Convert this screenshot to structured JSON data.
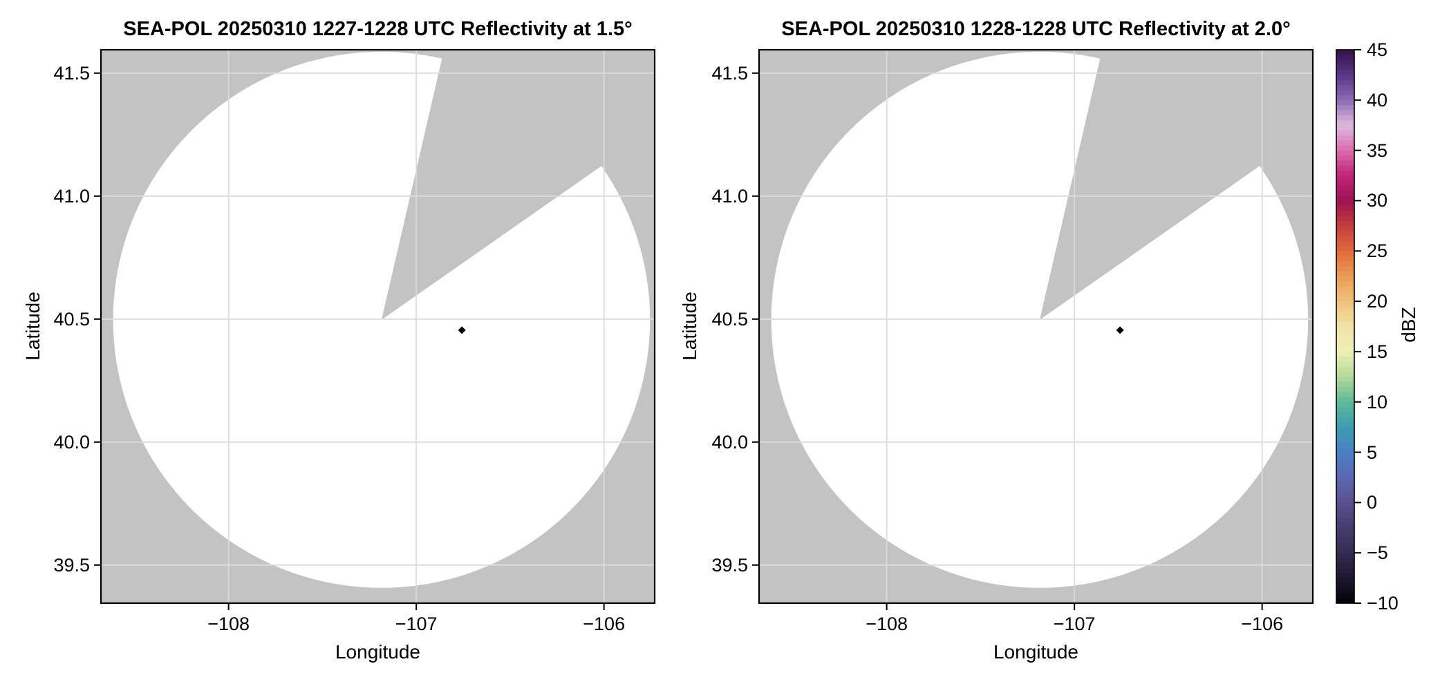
{
  "page": {
    "background": "#ffffff"
  },
  "colors": {
    "panel_background": "#c3c3c3",
    "scan_fill": "#ffffff",
    "gridline": "#dcdcdc",
    "spine": "#000000",
    "text": "#000000",
    "marker": "#000000"
  },
  "colorbar": {
    "label": "dBZ",
    "min": -10,
    "max": 45,
    "tick_values": [
      45,
      40,
      35,
      30,
      25,
      20,
      15,
      10,
      5,
      0,
      -5,
      -10
    ],
    "tick_labels": [
      "45",
      "40",
      "35",
      "30",
      "25",
      "20",
      "15",
      "10",
      "5",
      "0",
      "−5",
      "−10"
    ],
    "stops": [
      {
        "value": -10.0,
        "color": "#030208"
      },
      {
        "value": -7.5,
        "color": "#1e1730"
      },
      {
        "value": -5.0,
        "color": "#352b50"
      },
      {
        "value": -2.5,
        "color": "#473c6e"
      },
      {
        "value": 0.0,
        "color": "#5a5190"
      },
      {
        "value": 2.5,
        "color": "#5b68b2"
      },
      {
        "value": 5.0,
        "color": "#4b7fc3"
      },
      {
        "value": 7.5,
        "color": "#3d9cb2"
      },
      {
        "value": 10.0,
        "color": "#5fb999"
      },
      {
        "value": 12.5,
        "color": "#b4d89b"
      },
      {
        "value": 15.0,
        "color": "#edf0b6"
      },
      {
        "value": 17.5,
        "color": "#f3e2a6"
      },
      {
        "value": 20.0,
        "color": "#efc17c"
      },
      {
        "value": 22.5,
        "color": "#ea9c55"
      },
      {
        "value": 25.0,
        "color": "#e16a3b"
      },
      {
        "value": 27.5,
        "color": "#c53c3c"
      },
      {
        "value": 30.0,
        "color": "#9c1254"
      },
      {
        "value": 32.5,
        "color": "#c02577"
      },
      {
        "value": 35.0,
        "color": "#dc6cae"
      },
      {
        "value": 37.5,
        "color": "#debadf"
      },
      {
        "value": 40.0,
        "color": "#8d6ab4"
      },
      {
        "value": 42.5,
        "color": "#5b3585"
      },
      {
        "value": 45.0,
        "color": "#321347"
      }
    ]
  },
  "chart_data": [
    {
      "type": "radar_ppi",
      "title": "SEA-POL 20250310 1227-1228 UTC Reflectivity at 1.5°",
      "xlabel": "Longitude",
      "ylabel": "Latitude",
      "xlim": [
        -108.68,
        -105.73
      ],
      "ylim": [
        39.345,
        41.595
      ],
      "xtick_values": [
        -108,
        -107,
        -106
      ],
      "xtick_labels": [
        "−108",
        "−107",
        "−106"
      ],
      "ytick_values": [
        41.5,
        41.0,
        40.5,
        40.0,
        39.5
      ],
      "ytick_labels": [
        "41.5",
        "41.0",
        "40.5",
        "40.0",
        "39.5"
      ],
      "grid": true,
      "units": "dBZ",
      "radar_center": {
        "lon": -107.185,
        "lat": 40.497
      },
      "scan_radius_deg": {
        "lon": 1.43,
        "lat": 1.09
      },
      "missing_sector_azimuth_deg": [
        13,
        55
      ],
      "site_marker": {
        "lon": -106.757,
        "lat": 40.455
      }
    },
    {
      "type": "radar_ppi",
      "title": "SEA-POL 20250310 1228-1228 UTC Reflectivity at 2.0°",
      "xlabel": "Longitude",
      "ylabel": "Latitude",
      "xlim": [
        -108.68,
        -105.73
      ],
      "ylim": [
        39.345,
        41.595
      ],
      "xtick_values": [
        -108,
        -107,
        -106
      ],
      "xtick_labels": [
        "−108",
        "−107",
        "−106"
      ],
      "ytick_values": [
        41.5,
        41.0,
        40.5,
        40.0,
        39.5
      ],
      "ytick_labels": [
        "41.5",
        "41.0",
        "40.5",
        "40.0",
        "39.5"
      ],
      "grid": true,
      "units": "dBZ",
      "radar_center": {
        "lon": -107.185,
        "lat": 40.497
      },
      "scan_radius_deg": {
        "lon": 1.43,
        "lat": 1.09
      },
      "missing_sector_azimuth_deg": [
        13,
        55
      ],
      "site_marker": {
        "lon": -106.757,
        "lat": 40.455
      }
    }
  ]
}
